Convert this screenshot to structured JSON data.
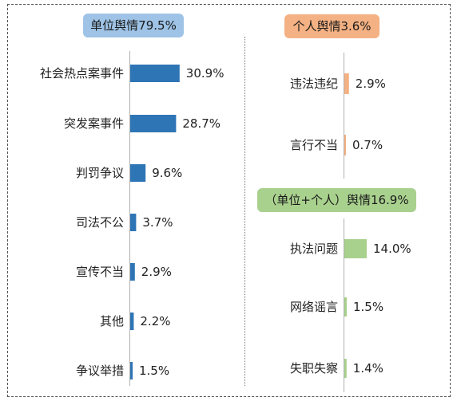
{
  "chart_data": [
    {
      "type": "bar",
      "orientation": "horizontal",
      "title": "单位舆情79.5%",
      "color": "#2e75b6",
      "categories": [
        "社会热点案事件",
        "突发案事件",
        "判罚争议",
        "司法不公",
        "宣传不当",
        "其他",
        "争议举措"
      ],
      "values": [
        30.9,
        28.7,
        9.6,
        3.7,
        2.9,
        2.2,
        1.5
      ],
      "value_labels": [
        "30.9%",
        "28.7%",
        "9.6%",
        "3.7%",
        "2.9%",
        "2.2%",
        "1.5%"
      ]
    },
    {
      "type": "bar",
      "orientation": "horizontal",
      "title": "个人舆情3.6%",
      "color": "#f4b183",
      "categories": [
        "违法违纪",
        "言行不当"
      ],
      "values": [
        2.9,
        0.7
      ],
      "value_labels": [
        "2.9%",
        "0.7%"
      ]
    },
    {
      "type": "bar",
      "orientation": "horizontal",
      "title": "（单位+个人）舆情16.9%",
      "color": "#a9d18e",
      "categories": [
        "执法问题",
        "网络谣言",
        "失职失察"
      ],
      "values": [
        14.0,
        1.5,
        1.4
      ],
      "value_labels": [
        "14.0%",
        "1.5%",
        "1.4%"
      ]
    }
  ]
}
